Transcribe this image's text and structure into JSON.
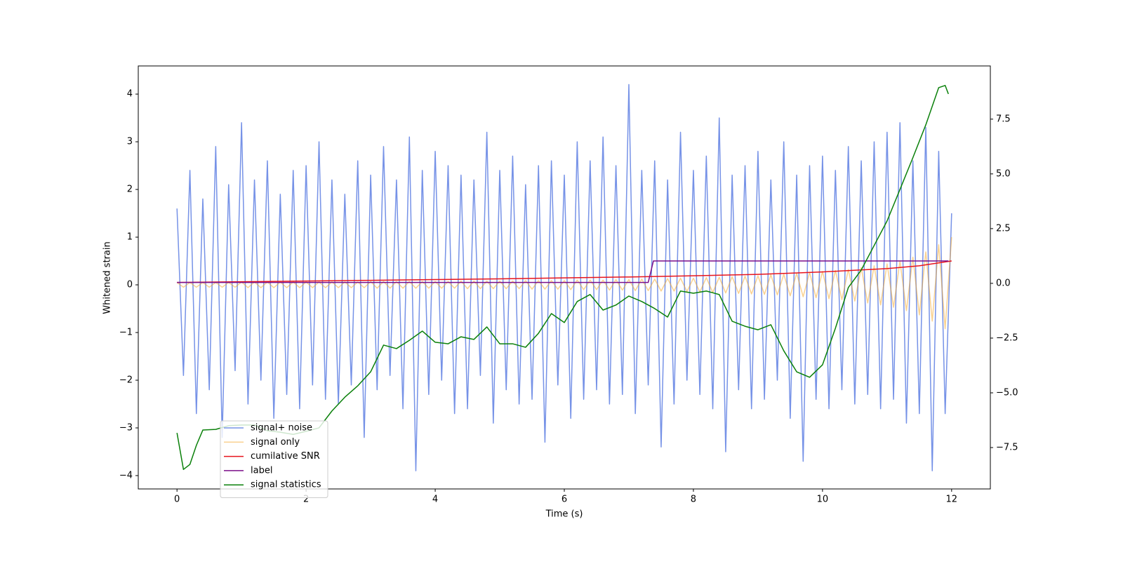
{
  "chart_data": {
    "type": "line",
    "xlabel": "Time (s)",
    "ylabel": "Whitened strain",
    "xlim": [
      -0.6,
      12.6
    ],
    "ylim": [
      -4.28,
      4.59
    ],
    "y2lim": [
      -9.39,
      9.93
    ],
    "xticks": [
      0,
      2,
      4,
      6,
      8,
      10,
      12
    ],
    "yticks": [
      {
        "value": -4,
        "label": "−4"
      },
      {
        "value": -3,
        "label": "−3"
      },
      {
        "value": -2,
        "label": "−2"
      },
      {
        "value": -1,
        "label": "−1"
      },
      0,
      1,
      2,
      3,
      4
    ],
    "y2ticks": [
      {
        "value": -7.5,
        "label": "−7.5"
      },
      {
        "value": -5,
        "label": "−5.0"
      },
      {
        "value": -2.5,
        "label": "−2.5"
      },
      {
        "value": 0,
        "label": "0.0"
      },
      2.5,
      {
        "value": 5,
        "label": "5.0"
      },
      7.5
    ],
    "legend": "lower left",
    "series": [
      {
        "name": "signal+ noise",
        "color": "#6f8ce6",
        "opacity": 0.95,
        "x": [
          0,
          0.1,
          0.2,
          0.3,
          0.4,
          0.5,
          0.6,
          0.7,
          0.8,
          0.9,
          1,
          1.1,
          1.2,
          1.3,
          1.4,
          1.5,
          1.6,
          1.7,
          1.8,
          1.9,
          2,
          2.1,
          2.2,
          2.3,
          2.4,
          2.5,
          2.6,
          2.7,
          2.8,
          2.9,
          3,
          3.1,
          3.2,
          3.3,
          3.4,
          3.5,
          3.6,
          3.7,
          3.8,
          3.9,
          4,
          4.1,
          4.2,
          4.3,
          4.4,
          4.5,
          4.6,
          4.7,
          4.8,
          4.9,
          5,
          5.1,
          5.2,
          5.3,
          5.4,
          5.5,
          5.6,
          5.7,
          5.8,
          5.9,
          6,
          6.1,
          6.2,
          6.3,
          6.4,
          6.5,
          6.6,
          6.7,
          6.8,
          6.9,
          7,
          7.1,
          7.2,
          7.3,
          7.4,
          7.5,
          7.6,
          7.7,
          7.8,
          7.9,
          8,
          8.1,
          8.2,
          8.3,
          8.4,
          8.5,
          8.6,
          8.7,
          8.8,
          8.9,
          9,
          9.1,
          9.2,
          9.3,
          9.4,
          9.5,
          9.6,
          9.7,
          9.8,
          9.9,
          10,
          10.1,
          10.2,
          10.3,
          10.4,
          10.5,
          10.6,
          10.7,
          10.8,
          10.9,
          11,
          11.1,
          11.2,
          11.3,
          11.4,
          11.5,
          11.6,
          11.7,
          11.8,
          11.9,
          12
        ],
        "values": [
          1.6,
          -1.9,
          2.4,
          -2.7,
          1.8,
          -2.2,
          2.9,
          -3.2,
          2.1,
          -1.8,
          3.4,
          -2.5,
          2.2,
          -2.0,
          2.6,
          -2.8,
          1.9,
          -2.3,
          2.4,
          -2.6,
          2.5,
          -2.1,
          3.0,
          -2.4,
          2.2,
          -2.5,
          1.9,
          -2.1,
          2.6,
          -3.2,
          2.3,
          -2.2,
          2.9,
          -1.9,
          2.2,
          -2.6,
          3.1,
          -3.9,
          2.4,
          -2.3,
          2.8,
          -2.0,
          2.5,
          -2.7,
          2.3,
          -2.6,
          2.2,
          -1.9,
          3.2,
          -2.9,
          2.4,
          -2.2,
          2.7,
          -2.5,
          2.1,
          -2.4,
          2.5,
          -3.3,
          2.6,
          -2.1,
          2.3,
          -2.8,
          3.0,
          -2.4,
          2.6,
          -2.2,
          3.1,
          -2.5,
          2.5,
          -2.3,
          4.2,
          -2.7,
          2.4,
          -2.1,
          2.6,
          -3.4,
          2.2,
          -2.5,
          3.2,
          -2.0,
          2.4,
          -2.3,
          2.7,
          -2.6,
          3.5,
          -3.5,
          2.3,
          -2.2,
          2.5,
          -2.6,
          2.8,
          -2.4,
          2.2,
          -2.0,
          3.0,
          -2.8,
          2.3,
          -3.7,
          2.5,
          -2.4,
          2.7,
          -2.6,
          2.4,
          -2.2,
          2.9,
          -2.5,
          2.6,
          -2.3,
          3.0,
          -2.6,
          3.2,
          -2.4,
          3.4,
          -2.9,
          2.6,
          -2.7,
          3.3,
          -3.9,
          2.8,
          -2.7,
          1.5
        ]
      },
      {
        "name": "signal only",
        "color": "#f5a623",
        "opacity": 0.5,
        "x": [
          0,
          0.1,
          0.2,
          0.3,
          0.4,
          0.5,
          0.6,
          0.7,
          0.8,
          0.9,
          1,
          1.1,
          1.2,
          1.3,
          1.4,
          1.5,
          1.6,
          1.7,
          1.8,
          1.9,
          2,
          2.1,
          2.2,
          2.3,
          2.4,
          2.5,
          2.6,
          2.7,
          2.8,
          2.9,
          3,
          3.1,
          3.2,
          3.3,
          3.4,
          3.5,
          3.6,
          3.7,
          3.8,
          3.9,
          4,
          4.1,
          4.2,
          4.3,
          4.4,
          4.5,
          4.6,
          4.7,
          4.8,
          4.9,
          5,
          5.1,
          5.2,
          5.3,
          5.4,
          5.5,
          5.6,
          5.7,
          5.8,
          5.9,
          6,
          6.1,
          6.2,
          6.3,
          6.4,
          6.5,
          6.6,
          6.7,
          6.8,
          6.9,
          7,
          7.1,
          7.2,
          7.3,
          7.4,
          7.5,
          7.6,
          7.7,
          7.8,
          7.9,
          8,
          8.1,
          8.2,
          8.3,
          8.4,
          8.5,
          8.6,
          8.7,
          8.8,
          8.9,
          9,
          9.1,
          9.2,
          9.3,
          9.4,
          9.5,
          9.6,
          9.7,
          9.8,
          9.9,
          10,
          10.1,
          10.2,
          10.3,
          10.4,
          10.5,
          10.6,
          10.7,
          10.8,
          10.9,
          11,
          11.1,
          11.2,
          11.3,
          11.4,
          11.5,
          11.6,
          11.7,
          11.8,
          11.9,
          12
        ],
        "values": [
          0.05,
          -0.05,
          0.05,
          -0.05,
          0.05,
          -0.05,
          0.05,
          -0.05,
          0.05,
          -0.05,
          0.06,
          -0.06,
          0.06,
          -0.06,
          0.06,
          -0.06,
          0.06,
          -0.06,
          0.06,
          -0.06,
          0.06,
          -0.06,
          0.06,
          -0.06,
          0.06,
          -0.06,
          0.06,
          -0.06,
          0.06,
          -0.06,
          0.07,
          -0.07,
          0.07,
          -0.07,
          0.07,
          -0.07,
          0.07,
          -0.07,
          0.07,
          -0.07,
          0.07,
          -0.07,
          0.07,
          -0.07,
          0.08,
          -0.08,
          0.08,
          -0.08,
          0.08,
          -0.08,
          0.08,
          -0.08,
          0.08,
          -0.08,
          0.09,
          -0.09,
          0.09,
          -0.09,
          0.09,
          -0.09,
          0.09,
          -0.1,
          0.1,
          -0.1,
          0.1,
          -0.1,
          0.1,
          -0.11,
          0.11,
          -0.11,
          0.11,
          -0.12,
          0.12,
          -0.12,
          0.12,
          -0.13,
          0.13,
          -0.13,
          0.14,
          -0.14,
          0.14,
          -0.15,
          0.15,
          -0.16,
          0.16,
          -0.17,
          0.17,
          -0.18,
          0.18,
          -0.19,
          0.19,
          -0.2,
          0.21,
          -0.21,
          0.22,
          -0.23,
          0.24,
          -0.25,
          0.26,
          -0.27,
          0.28,
          -0.29,
          0.3,
          -0.31,
          0.32,
          -0.34,
          0.36,
          -0.38,
          0.4,
          -0.42,
          0.44,
          -0.47,
          0.5,
          -0.54,
          0.58,
          -0.63,
          0.69,
          -0.76,
          0.84,
          -0.92,
          1.0
        ]
      },
      {
        "name": "cumilative SNR",
        "color": "#e8141c",
        "opacity": 1,
        "x": [
          0,
          1,
          2,
          3,
          4,
          5,
          6,
          7,
          8,
          9,
          10,
          11,
          11.5,
          12
        ],
        "values": [
          0.05,
          0.065,
          0.08,
          0.095,
          0.11,
          0.125,
          0.145,
          0.165,
          0.19,
          0.22,
          0.27,
          0.34,
          0.4,
          0.5
        ]
      },
      {
        "name": "label",
        "color": "#7b0f8a",
        "opacity": 1,
        "x": [
          0,
          7.3,
          7.38,
          11.95
        ],
        "values": [
          0.05,
          0.05,
          0.5,
          0.5
        ]
      },
      {
        "name": "signal statistics",
        "color": "#0a800a",
        "opacity": 1,
        "axis": "y2",
        "x": [
          0,
          0.1,
          0.2,
          0.3,
          0.4,
          0.6,
          0.8,
          1,
          1.2,
          1.4,
          1.6,
          1.8,
          2,
          2.2,
          2.4,
          2.6,
          2.8,
          3,
          3.2,
          3.4,
          3.6,
          3.8,
          4,
          4.2,
          4.4,
          4.6,
          4.8,
          5,
          5.2,
          5.4,
          5.6,
          5.8,
          6,
          6.2,
          6.4,
          6.6,
          6.8,
          7,
          7.2,
          7.4,
          7.6,
          7.8,
          8,
          8.2,
          8.4,
          8.6,
          8.8,
          9,
          9.2,
          9.4,
          9.6,
          9.8,
          10,
          10.2,
          10.4,
          10.6,
          10.8,
          11,
          11.2,
          11.4,
          11.6,
          11.8,
          11.9,
          11.95
        ],
        "values": [
          -6.83,
          -8.5,
          -8.27,
          -7.4,
          -6.7,
          -6.67,
          -6.5,
          -6.47,
          -6.47,
          -6.73,
          -6.8,
          -6.9,
          -6.76,
          -6.6,
          -5.83,
          -5.2,
          -4.68,
          -4.04,
          -2.82,
          -2.98,
          -2.6,
          -2.18,
          -2.69,
          -2.76,
          -2.44,
          -2.56,
          -1.99,
          -2.76,
          -2.76,
          -2.92,
          -2.28,
          -1.38,
          -1.79,
          -0.83,
          -0.51,
          -1.22,
          -0.99,
          -0.58,
          -0.83,
          -1.15,
          -1.54,
          -0.35,
          -0.45,
          -0.35,
          -0.51,
          -1.73,
          -1.96,
          -2.12,
          -1.89,
          -3.08,
          -4.04,
          -4.29,
          -3.72,
          -2.05,
          -0.19,
          0.61,
          1.73,
          2.85,
          4.29,
          5.74,
          7.24,
          8.94,
          9.04,
          8.65
        ]
      }
    ]
  }
}
